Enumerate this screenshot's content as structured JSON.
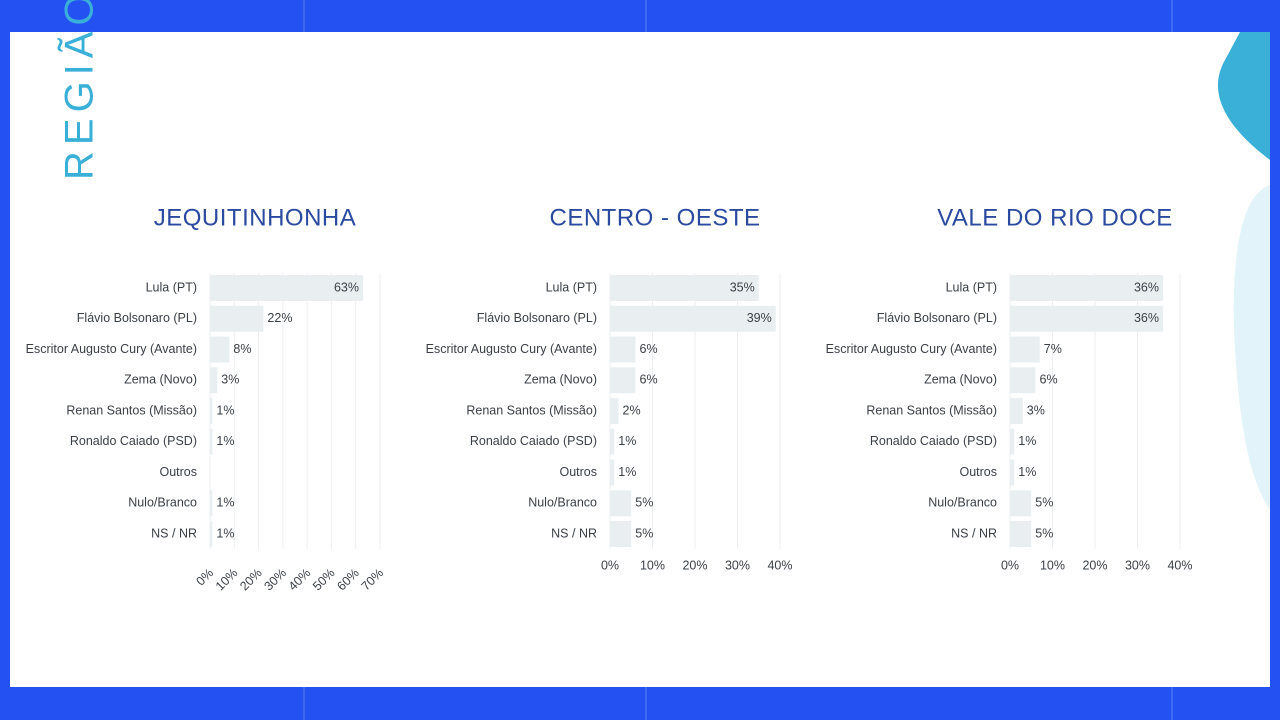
{
  "page_title": "REGIÃO",
  "chart_data": [
    {
      "type": "bar",
      "orientation": "horizontal",
      "title": "JEQUITINHONHA",
      "categories": [
        "Lula (PT)",
        "Flávio Bolsonaro (PL)",
        "Escritor Augusto Cury (Avante)",
        "Zema (Novo)",
        "Renan Santos (Missão)",
        "Ronaldo Caiado (PSD)",
        "Outros",
        "Nulo/Branco",
        "NS / NR"
      ],
      "values": [
        63,
        22,
        8,
        3,
        1,
        1,
        null,
        1,
        1
      ],
      "value_labels": [
        "63%",
        "22%",
        "8%",
        "3%",
        "1%",
        "1%",
        null,
        "1%",
        "1%"
      ],
      "color": "#e9eff1",
      "grid": true,
      "xlim": [
        0,
        70
      ],
      "xticks": [
        {
          "value": 0,
          "label": "0%"
        },
        {
          "value": 10,
          "label": "10%"
        },
        {
          "value": 20,
          "label": "20%"
        },
        {
          "value": 30,
          "label": "30%"
        },
        {
          "value": 40,
          "label": "40%"
        },
        {
          "value": 50,
          "label": "50%"
        },
        {
          "value": 60,
          "label": "60%"
        },
        {
          "value": 70,
          "label": "70%"
        }
      ]
    },
    {
      "type": "bar",
      "orientation": "horizontal",
      "title": "CENTRO - OESTE",
      "categories": [
        "Lula (PT)",
        "Flávio Bolsonaro (PL)",
        "Escritor Augusto Cury (Avante)",
        "Zema (Novo)",
        "Renan Santos (Missão)",
        "Ronaldo Caiado (PSD)",
        "Outros",
        "Nulo/Branco",
        "NS / NR"
      ],
      "values": [
        35,
        39,
        6,
        6,
        2,
        1,
        1,
        5,
        5
      ],
      "value_labels": [
        "35%",
        "39%",
        "6%",
        "6%",
        "2%",
        "1%",
        "1%",
        "5%",
        "5%"
      ],
      "color": "#e9eff1",
      "grid": true,
      "xlim": [
        0,
        40
      ],
      "xticks": [
        {
          "value": 0,
          "label": "0%"
        },
        {
          "value": 10,
          "label": "10%"
        },
        {
          "value": 20,
          "label": "20%"
        },
        {
          "value": 30,
          "label": "30%"
        },
        {
          "value": 40,
          "label": "40%"
        }
      ]
    },
    {
      "type": "bar",
      "orientation": "horizontal",
      "title": "VALE DO RIO DOCE",
      "categories": [
        "Lula (PT)",
        "Flávio Bolsonaro (PL)",
        "Escritor Augusto Cury (Avante)",
        "Zema (Novo)",
        "Renan Santos (Missão)",
        "Ronaldo Caiado (PSD)",
        "Outros",
        "Nulo/Branco",
        "NS / NR"
      ],
      "values": [
        36,
        36,
        7,
        6,
        3,
        1,
        1,
        5,
        5
      ],
      "value_labels": [
        "36%",
        "36%",
        "7%",
        "6%",
        "3%",
        "1%",
        "1%",
        "5%",
        "5%"
      ],
      "color": "#e9eff1",
      "grid": true,
      "xlim": [
        0,
        40
      ],
      "xticks": [
        {
          "value": 0,
          "label": "0%"
        },
        {
          "value": 10,
          "label": "10%"
        },
        {
          "value": 20,
          "label": "20%"
        },
        {
          "value": 30,
          "label": "30%"
        },
        {
          "value": 40,
          "label": "40%"
        }
      ]
    }
  ]
}
